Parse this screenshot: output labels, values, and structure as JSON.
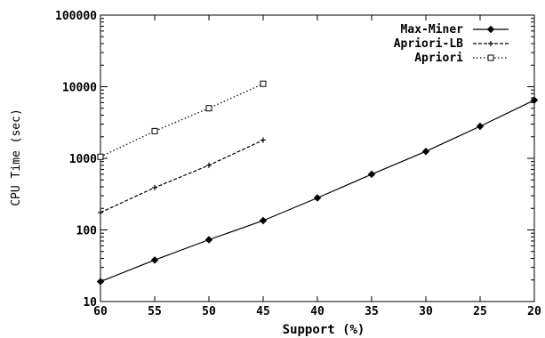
{
  "chart_data": {
    "type": "line",
    "title": "",
    "xlabel": "Support (%)",
    "ylabel": "CPU Time (sec)",
    "x_reversed": true,
    "y_scale": "log",
    "xlim": [
      60,
      20
    ],
    "ylim": [
      10,
      100000
    ],
    "x_ticks": [
      60,
      55,
      50,
      45,
      40,
      35,
      30,
      25,
      20
    ],
    "y_ticks": [
      10,
      100,
      1000,
      10000,
      100000
    ],
    "grid": false,
    "legend_position": "top-right",
    "series": [
      {
        "name": "Max-Miner",
        "marker": "diamond",
        "line_style": "solid",
        "x": [
          60,
          55,
          50,
          45,
          40,
          35,
          30,
          25,
          20
        ],
        "values": [
          19,
          38,
          73,
          135,
          280,
          600,
          1250,
          2800,
          6500
        ]
      },
      {
        "name": "Apriori-LB",
        "marker": "plus",
        "line_style": "dashed",
        "x": [
          60,
          55,
          50,
          45
        ],
        "values": [
          175,
          390,
          800,
          1800
        ]
      },
      {
        "name": "Apriori",
        "marker": "square",
        "line_style": "dotted",
        "x": [
          60,
          55,
          50,
          45
        ],
        "values": [
          1050,
          2400,
          5000,
          11000
        ]
      }
    ]
  }
}
